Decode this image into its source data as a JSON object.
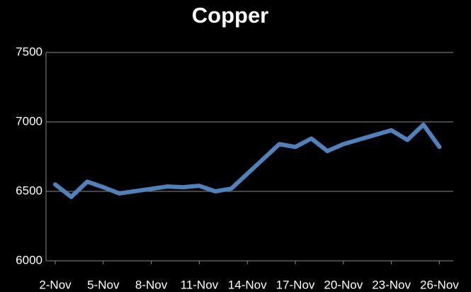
{
  "chart_data": {
    "type": "line",
    "title": "Copper",
    "x": [
      "2-Nov",
      "3-Nov",
      "4-Nov",
      "5-Nov",
      "6-Nov",
      "9-Nov",
      "10-Nov",
      "11-Nov",
      "12-Nov",
      "13-Nov",
      "16-Nov",
      "17-Nov",
      "18-Nov",
      "19-Nov",
      "20-Nov",
      "23-Nov",
      "24-Nov",
      "25-Nov",
      "26-Nov"
    ],
    "series": [
      {
        "name": "Copper",
        "color": "#4f81bd",
        "values": [
          6550,
          6460,
          6570,
          6530,
          6485,
          6535,
          6530,
          6540,
          6500,
          6520,
          6840,
          6820,
          6880,
          6790,
          6840,
          6940,
          6870,
          6980,
          6820
        ]
      }
    ],
    "xticks": [
      "2-Nov",
      "5-Nov",
      "8-Nov",
      "11-Nov",
      "14-Nov",
      "17-Nov",
      "20-Nov",
      "23-Nov",
      "26-Nov"
    ],
    "ylim": [
      6000,
      7500
    ],
    "yticks": [
      6000,
      6500,
      7000,
      7500
    ],
    "grid": true
  }
}
